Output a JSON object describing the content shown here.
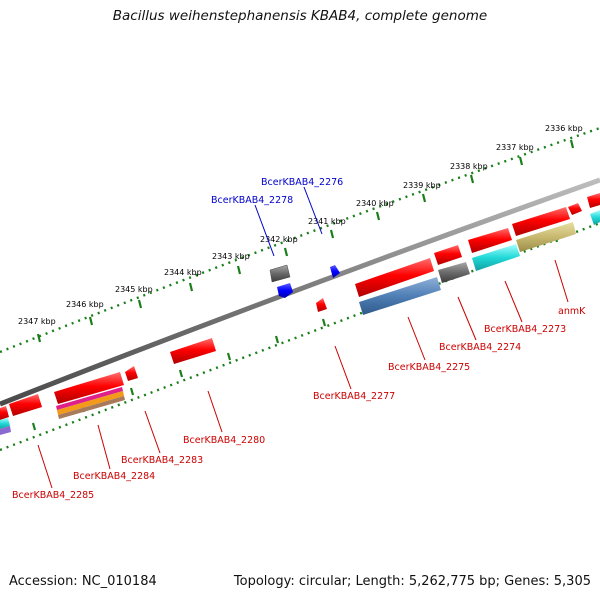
{
  "title": "Bacillus weihenstephanensis KBAB4, complete genome",
  "footer": {
    "accession": "Accession: NC_010184",
    "summary": "Topology: circular; Length: 5,262,775 bp; Genes: 5,305"
  },
  "scale_labels": [
    "2336 kbp",
    "2337 kbp",
    "2338 kbp",
    "2339 kbp",
    "2340 kbp",
    "2341 kbp",
    "2342 kbp",
    "2343 kbp",
    "2344 kbp",
    "2345 kbp",
    "2346 kbp",
    "2347 kbp"
  ],
  "gene_labels": {
    "forward": [
      "BcerKBAB4_2276",
      "BcerKBAB4_2278"
    ],
    "reverse": [
      "anmK",
      "BcerKBAB4_2273",
      "BcerKBAB4_2274",
      "BcerKBAB4_2275",
      "BcerKBAB4_2277",
      "BcerKBAB4_2280",
      "BcerKBAB4_2283",
      "BcerKBAB4_2284",
      "BcerKBAB4_2285"
    ]
  },
  "colors": {
    "forward_label": "#0000cc",
    "reverse_label": "#cc0000",
    "backbone": "#7a7a7a",
    "ticks": "#1a7f1a"
  }
}
